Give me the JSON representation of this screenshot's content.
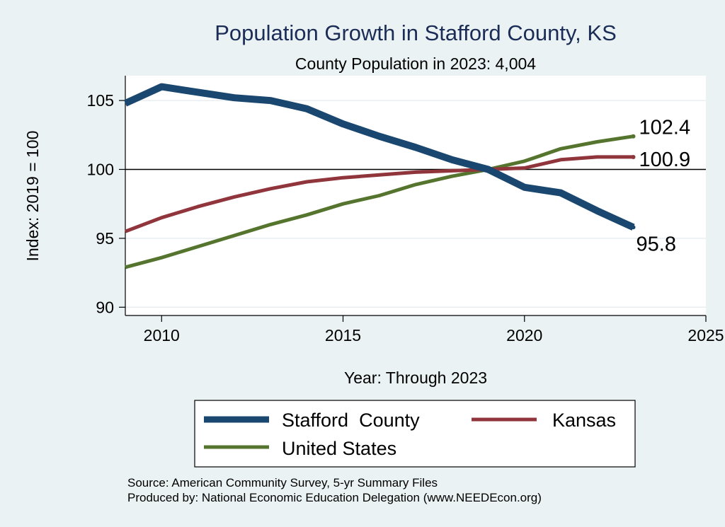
{
  "chart_data": {
    "type": "line",
    "title": "Population Growth in Stafford County, KS",
    "subtitle": "County Population in 2023: 4,004",
    "xlabel": "Year: Through 2023",
    "ylabel": "Index: 2019 = 100",
    "xlim": [
      2009,
      2025
    ],
    "ylim": [
      89.4,
      106.8
    ],
    "xticks": [
      2010,
      2015,
      2020,
      2025
    ],
    "yticks": [
      90,
      95,
      100,
      105
    ],
    "reference_line": 100,
    "grid": true,
    "x": [
      2009,
      2010,
      2011,
      2012,
      2013,
      2014,
      2015,
      2016,
      2017,
      2018,
      2019,
      2020,
      2021,
      2022,
      2023
    ],
    "series": [
      {
        "name": "Stafford  County",
        "color": "#1a476f",
        "values": [
          104.8,
          106.0,
          105.6,
          105.2,
          105.0,
          104.4,
          103.3,
          102.4,
          101.6,
          100.7,
          100.0,
          98.7,
          98.3,
          97.0,
          95.8
        ],
        "end_label": "95.8"
      },
      {
        "name": "Kansas",
        "color": "#90353b",
        "values": [
          95.5,
          96.5,
          97.3,
          98.0,
          98.6,
          99.1,
          99.4,
          99.6,
          99.8,
          99.9,
          100.0,
          100.1,
          100.7,
          100.9,
          100.9
        ],
        "end_label": "100.9"
      },
      {
        "name": "United States",
        "color": "#55752f",
        "values": [
          92.9,
          93.6,
          94.4,
          95.2,
          96.0,
          96.7,
          97.5,
          98.1,
          98.9,
          99.5,
          100.0,
          100.6,
          101.5,
          102.0,
          102.4
        ],
        "end_label": "102.4"
      }
    ],
    "legend": {
      "placement": "bottom",
      "entries": [
        "Stafford  County",
        "Kansas",
        "United States"
      ]
    },
    "notes": [
      "Source: American Community Survey, 5-yr Summary Files",
      "Produced by: National Economic Education Delegation (www.NEEDEcon.org)"
    ]
  }
}
